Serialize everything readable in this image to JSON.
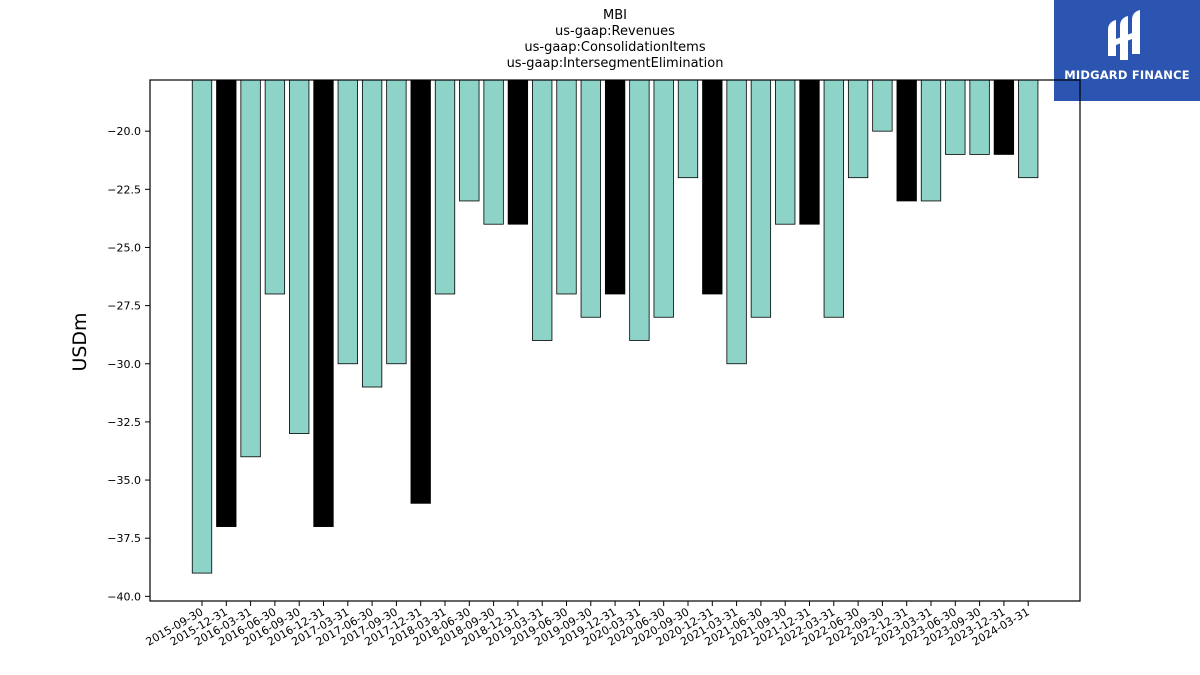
{
  "title_lines": [
    "MBI",
    "us-gaap:Revenues",
    "us-gaap:ConsolidationItems",
    "us-gaap:IntersegmentElimination"
  ],
  "logo": {
    "text": "MIDGARD FINANCE",
    "background": "#2b55b0",
    "icon": "midgard-mark-icon"
  },
  "chart_data": {
    "type": "bar",
    "ylabel": "USDm",
    "xlabel": "",
    "ylim": [
      -40.2,
      -17.8
    ],
    "yticks": [
      -20.0,
      -22.5,
      -25.0,
      -27.5,
      -30.0,
      -32.5,
      -35.0,
      -37.5,
      -40.0
    ],
    "grid": false,
    "categories": [
      "2015-09-30",
      "2015-12-31",
      "2016-03-31",
      "2016-06-30",
      "2016-09-30",
      "2016-12-31",
      "2017-03-31",
      "2017-06-30",
      "2017-09-30",
      "2017-12-31",
      "2018-03-31",
      "2018-06-30",
      "2018-09-30",
      "2018-12-31",
      "2019-03-31",
      "2019-06-30",
      "2019-09-30",
      "2019-12-31",
      "2020-03-31",
      "2020-06-30",
      "2020-09-30",
      "2020-12-31",
      "2021-03-31",
      "2021-06-30",
      "2021-09-30",
      "2021-12-31",
      "2022-03-31",
      "2022-06-30",
      "2022-09-30",
      "2022-12-31",
      "2023-03-31",
      "2023-06-30",
      "2023-09-30",
      "2023-12-31",
      "2024-03-31"
    ],
    "values": [
      -39,
      -37,
      -34,
      -27,
      -33,
      -37,
      -30,
      -31,
      -30,
      -36,
      -27,
      -23,
      -24,
      -24,
      -29,
      -27,
      -28,
      -27,
      -29,
      -28,
      -22,
      -27,
      -30,
      -28,
      -24,
      -24,
      -28,
      -22,
      -20,
      -23,
      -23,
      -21,
      -21,
      -21,
      -22
    ],
    "quarter_end_color": "#000000",
    "quarter_color": "#8dd3c7",
    "edge_color": "#000000"
  }
}
